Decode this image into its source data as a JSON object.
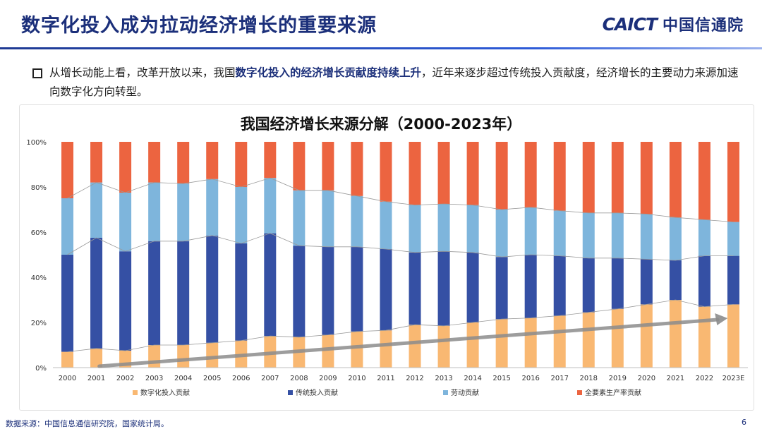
{
  "slide": {
    "title": "数字化投入成为拉动经济增长的重要来源",
    "logo_en": "CAICT",
    "logo_cn": "中国信通院",
    "bullet_pre": "从增长动能上看，改革开放以来，我国",
    "bullet_highlight": "数字化投入的经济增长贡献度持续上升",
    "bullet_post": "，近年来逐步超过传统投入贡献度，经济增长的主要动力来源加速向数字化方向转型。",
    "source": "数据来源：中国信息通信研究院，国家统计局。",
    "page_number": "6"
  },
  "chart_data": {
    "type": "bar",
    "stacked": true,
    "title": "我国经济增长来源分解（2000-2023年）",
    "categories": [
      "2000",
      "2001",
      "2002",
      "2003",
      "2004",
      "2005",
      "2006",
      "2007",
      "2008",
      "2009",
      "2010",
      "2011",
      "2012",
      "2013",
      "2014",
      "2015",
      "2016",
      "2017",
      "2018",
      "2019",
      "2020",
      "2021",
      "2022",
      "2023E"
    ],
    "yticks": [
      "0%",
      "20%",
      "40%",
      "60%",
      "80%",
      "100%"
    ],
    "ylim": [
      0,
      100
    ],
    "series": [
      {
        "name": "数字化投入贡献",
        "color": "#f9b872",
        "values": [
          7,
          8.5,
          7.5,
          10,
          10,
          11,
          12,
          14,
          13.5,
          14.5,
          16,
          16.5,
          19,
          18.5,
          20,
          21.5,
          22,
          23,
          24.5,
          26,
          28,
          30,
          27,
          28
        ]
      },
      {
        "name": "传统投入贡献",
        "color": "#3550a4",
        "values": [
          43,
          49,
          44,
          46,
          46,
          47.5,
          43,
          45.5,
          40.5,
          39,
          37.5,
          36,
          32,
          33,
          31,
          27.5,
          28,
          26.5,
          24,
          22.5,
          20,
          17.5,
          22.5,
          21.5
        ]
      },
      {
        "name": "劳动贡献",
        "color": "#7eb5dc",
        "values": [
          25,
          24.5,
          26,
          26,
          25.5,
          25,
          25,
          24.5,
          24.5,
          25,
          22.5,
          21,
          21,
          21,
          21,
          21,
          21,
          20,
          20,
          20,
          20,
          19,
          16,
          15
        ]
      },
      {
        "name": "全要素生产率贡献",
        "color": "#ec6440",
        "values": [
          25,
          18,
          22.5,
          18,
          18.5,
          16.5,
          20,
          16,
          21.5,
          21.5,
          24,
          26.5,
          28,
          27.5,
          28,
          30,
          29,
          30.5,
          31.5,
          31.5,
          32,
          33.5,
          34.5,
          35.5
        ]
      }
    ],
    "legend_position": "bottom",
    "trend_arrow": "rising"
  }
}
